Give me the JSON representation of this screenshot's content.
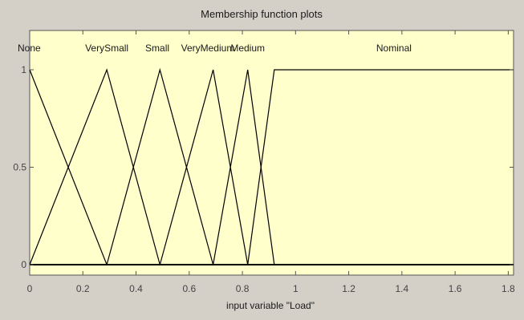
{
  "window": {
    "background": "#d4d0c8",
    "plot_background": "#ffffcc"
  },
  "chart_data": {
    "type": "line",
    "title": "Membership function plots",
    "xlabel": "input variable \"Load\"",
    "ylabel": "",
    "xlim": [
      0,
      1.82
    ],
    "ylim": [
      0,
      1
    ],
    "x_ticks": [
      0,
      0.2,
      0.4,
      0.6,
      0.8,
      1,
      1.2,
      1.4,
      1.6,
      1.8
    ],
    "x_tick_labels": [
      "0",
      "0.2",
      "0.4",
      "0.6",
      "0.8",
      "1",
      "1.2",
      "1.4",
      "1.6",
      "1.8"
    ],
    "y_ticks": [
      0,
      0.5,
      1
    ],
    "y_tick_labels": [
      "0",
      "0.5",
      "1"
    ],
    "grid": false,
    "line_color": "#000000",
    "series": [
      {
        "name": "None",
        "label_x": 0.03,
        "points": [
          [
            0,
            1
          ],
          [
            0.29,
            0
          ]
        ]
      },
      {
        "name": "VerySmall",
        "label_x": 0.29,
        "points": [
          [
            0,
            0
          ],
          [
            0.29,
            1
          ],
          [
            0.49,
            0
          ]
        ]
      },
      {
        "name": "Small",
        "label_x": 0.48,
        "points": [
          [
            0.29,
            0
          ],
          [
            0.49,
            1
          ],
          [
            0.69,
            0
          ]
        ]
      },
      {
        "name": "VeryMedium",
        "label_x": 0.67,
        "points": [
          [
            0.49,
            0
          ],
          [
            0.69,
            1
          ],
          [
            0.82,
            0
          ]
        ]
      },
      {
        "name": "Medium",
        "label_x": 0.82,
        "points": [
          [
            0.69,
            0
          ],
          [
            0.82,
            1
          ],
          [
            0.92,
            0
          ]
        ]
      },
      {
        "name": "Nominal",
        "label_x": 1.37,
        "points": [
          [
            0.82,
            0
          ],
          [
            0.92,
            1
          ],
          [
            1.82,
            1
          ]
        ]
      }
    ]
  }
}
